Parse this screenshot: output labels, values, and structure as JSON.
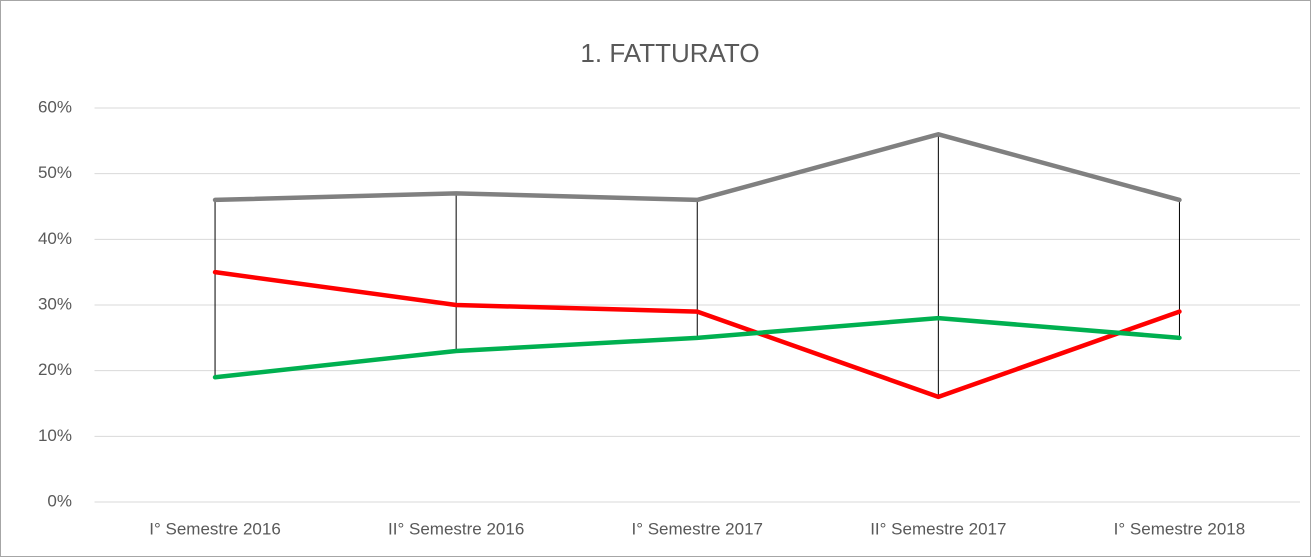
{
  "chart_data": {
    "type": "line",
    "title": "1. FATTURATO",
    "categories": [
      "I° Semestre 2016",
      "II° Semestre 2016",
      "I° Semestre 2017",
      "II° Semestre 2017",
      "I° Semestre 2018"
    ],
    "series": [
      {
        "color": "#808080",
        "values": [
          46,
          47,
          46,
          56,
          46
        ]
      },
      {
        "color": "#ff0000",
        "values": [
          35,
          30,
          29,
          16,
          29
        ]
      },
      {
        "color": "#00b050",
        "values": [
          19,
          23,
          25,
          28,
          25
        ]
      }
    ],
    "ylim": [
      0,
      60
    ],
    "yticks": [
      {
        "value": 0,
        "label": "0%"
      },
      {
        "value": 10,
        "label": "10%"
      },
      {
        "value": 20,
        "label": "20%"
      },
      {
        "value": 30,
        "label": "30%"
      },
      {
        "value": 40,
        "label": "40%"
      },
      {
        "value": 50,
        "label": "50%"
      },
      {
        "value": 60,
        "label": "60%"
      }
    ],
    "grid": true,
    "high_low_lines": true
  }
}
